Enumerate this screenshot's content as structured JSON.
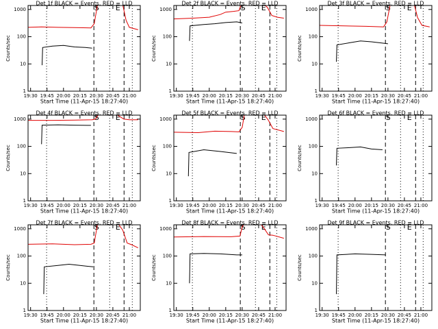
{
  "chart_data": [
    {
      "type": "line",
      "title": "Det 1f BLACK = Events, RED = LLD",
      "xlabel": "Start Time (11-Apr-15 18:27:40)",
      "ylabel": "Counts/sec",
      "yscale": "log",
      "ylim": [
        1,
        1400
      ],
      "yticks": [
        1,
        10,
        100,
        1000
      ],
      "xlim": [
        1167.7,
        1270
      ],
      "xticks": [
        {
          "value": 1170,
          "label": "19:30"
        },
        {
          "value": 1185,
          "label": "19:45"
        },
        {
          "value": 1200,
          "label": "20:00"
        },
        {
          "value": 1215,
          "label": "20:15"
        },
        {
          "value": 1230,
          "label": "20:30"
        },
        {
          "value": 1245,
          "label": "20:45"
        },
        {
          "value": 1260,
          "label": "21:00"
        }
      ],
      "annotations": [
        {
          "x": 1184.6,
          "style": "dotted"
        },
        {
          "x": 1227.7,
          "style": "dashed",
          "label": "S"
        },
        {
          "x": 1242.1,
          "style": "dotted"
        },
        {
          "x": 1255.2,
          "style": "dashed",
          "label": "E"
        },
        {
          "x": 1262.7,
          "style": "dotted"
        }
      ],
      "series": [
        {
          "color": "#e00000",
          "x": [
            1167.7,
            1180,
            1195,
            1210,
            1225,
            1228,
            1231,
            1254,
            1257,
            1260,
            1268
          ],
          "values": [
            220,
            230,
            220,
            215,
            210,
            300,
            1500,
            1500,
            400,
            220,
            180
          ]
        },
        {
          "color": "#000000",
          "x": [
            1180.5,
            1181,
            1190,
            1200,
            1210,
            1220,
            1226
          ],
          "values": [
            9,
            40,
            45,
            48,
            42,
            40,
            38
          ]
        }
      ]
    },
    {
      "type": "line",
      "title": "Det 2f BLACK = Events, RED = LLD",
      "xlabel": "Start Time (11-Apr-15 18:27:40)",
      "ylabel": "Counts/sec",
      "yscale": "log",
      "ylim": [
        1,
        1400
      ],
      "yticks": [
        1,
        10,
        100,
        1000
      ],
      "xlim": [
        1167.7,
        1270
      ],
      "xticks": [
        {
          "value": 1170,
          "label": "19:30"
        },
        {
          "value": 1185,
          "label": "19:45"
        },
        {
          "value": 1200,
          "label": "20:00"
        },
        {
          "value": 1215,
          "label": "20:15"
        },
        {
          "value": 1230,
          "label": "20:30"
        },
        {
          "value": 1245,
          "label": "20:45"
        },
        {
          "value": 1260,
          "label": "21:00"
        }
      ],
      "annotations": [
        {
          "x": 1184.6,
          "style": "dotted"
        },
        {
          "x": 1228.3,
          "style": "dashed",
          "label": "S"
        },
        {
          "x": 1242.1,
          "style": "dotted"
        },
        {
          "x": 1255.2,
          "style": "dashed",
          "label": "E"
        },
        {
          "x": 1261.5,
          "style": "dotted"
        }
      ],
      "series": [
        {
          "color": "#e00000",
          "x": [
            1167.7,
            1185,
            1200,
            1210,
            1215,
            1222,
            1227,
            1229,
            1232,
            1250,
            1253,
            1257,
            1262,
            1268
          ],
          "values": [
            450,
            480,
            520,
            650,
            800,
            850,
            900,
            1500,
            1500,
            1500,
            1200,
            600,
            520,
            480
          ]
        },
        {
          "color": "#000000",
          "x": [
            1182,
            1182.5,
            1195,
            1205,
            1215,
            1225,
            1230
          ],
          "values": [
            70,
            250,
            280,
            300,
            330,
            350,
            320
          ]
        }
      ]
    },
    {
      "type": "line",
      "title": "Det 3f BLACK = Events, RED = LLD",
      "xlabel": "Start Time (11-Apr-15 18:27:40)",
      "ylabel": "Counts/sec",
      "yscale": "log",
      "ylim": [
        1,
        1400
      ],
      "yticks": [
        1,
        10,
        100,
        1000
      ],
      "xlim": [
        1167.7,
        1270
      ],
      "xticks": [
        {
          "value": 1170,
          "label": "19:30"
        },
        {
          "value": 1185,
          "label": "19:45"
        },
        {
          "value": 1200,
          "label": "20:00"
        },
        {
          "value": 1215,
          "label": "20:15"
        },
        {
          "value": 1230,
          "label": "20:30"
        },
        {
          "value": 1245,
          "label": "20:45"
        },
        {
          "value": 1260,
          "label": "21:00"
        }
      ],
      "annotations": [
        {
          "x": 1184.6,
          "style": "dotted"
        },
        {
          "x": 1227.7,
          "style": "dashed",
          "label": "S"
        },
        {
          "x": 1241.5,
          "style": "dotted"
        },
        {
          "x": 1255.2,
          "style": "dashed",
          "label": "E"
        },
        {
          "x": 1262.1,
          "style": "dotted"
        }
      ],
      "series": [
        {
          "color": "#e00000",
          "x": [
            1167.7,
            1190,
            1210,
            1226,
            1229,
            1232,
            1254,
            1257,
            1261,
            1268
          ],
          "values": [
            260,
            250,
            240,
            230,
            350,
            1500,
            1500,
            500,
            260,
            230
          ]
        },
        {
          "color": "#000000",
          "x": [
            1183,
            1183.5,
            1195,
            1205,
            1215,
            1225,
            1230
          ],
          "values": [
            12,
            50,
            60,
            70,
            65,
            58,
            55
          ]
        }
      ]
    },
    {
      "type": "line",
      "title": "Det 4f BLACK = Events, RED = LLD",
      "xlabel": "Start Time (11-Apr-15 18:27:40)",
      "ylabel": "Counts/sec",
      "yscale": "log",
      "ylim": [
        1,
        1400
      ],
      "yticks": [
        1,
        10,
        100,
        1000
      ],
      "xlim": [
        1167.7,
        1270
      ],
      "xticks": [
        {
          "value": 1170,
          "label": "19:30"
        },
        {
          "value": 1185,
          "label": "19:45"
        },
        {
          "value": 1200,
          "label": "20:00"
        },
        {
          "value": 1215,
          "label": "20:15"
        },
        {
          "value": 1230,
          "label": "20:30"
        },
        {
          "value": 1245,
          "label": "20:45"
        },
        {
          "value": 1260,
          "label": "21:00"
        }
      ],
      "annotations": [
        {
          "x": 1184.6,
          "style": "dotted"
        },
        {
          "x": 1227.7,
          "style": "dashed",
          "label": "S"
        },
        {
          "x": 1242.1,
          "style": "dotted"
        },
        {
          "x": 1255.2,
          "style": "dashed",
          "label": "E"
        },
        {
          "x": 1262.7,
          "style": "dotted"
        }
      ],
      "series": [
        {
          "color": "#e00000",
          "x": [
            1167.7,
            1190,
            1210,
            1226,
            1229,
            1232,
            1248,
            1252,
            1255,
            1260,
            1268
          ],
          "values": [
            900,
            900,
            920,
            950,
            1000,
            1500,
            1500,
            1200,
            1000,
            950,
            950
          ]
        },
        {
          "color": "#000000",
          "x": [
            1180,
            1180.5,
            1195,
            1210,
            1225
          ],
          "values": [
            120,
            600,
            620,
            600,
            590
          ]
        }
      ]
    },
    {
      "type": "line",
      "title": "Det 5f BLACK = Events, RED = LLD",
      "xlabel": "Start Time (11-Apr-15 18:27:40)",
      "ylabel": "Counts/sec",
      "yscale": "log",
      "ylim": [
        1,
        1400
      ],
      "yticks": [
        1,
        10,
        100,
        1000
      ],
      "xlim": [
        1167.7,
        1270
      ],
      "xticks": [
        {
          "value": 1170,
          "label": "19:30"
        },
        {
          "value": 1185,
          "label": "19:45"
        },
        {
          "value": 1200,
          "label": "20:00"
        },
        {
          "value": 1215,
          "label": "20:15"
        },
        {
          "value": 1230,
          "label": "20:30"
        },
        {
          "value": 1245,
          "label": "20:45"
        },
        {
          "value": 1260,
          "label": "21:00"
        }
      ],
      "annotations": [
        {
          "x": 1184.6,
          "style": "dotted"
        },
        {
          "x": 1228.3,
          "style": "dashed",
          "label": "S"
        },
        {
          "x": 1242.1,
          "style": "dotted"
        },
        {
          "x": 1255.2,
          "style": "dashed",
          "label": "E"
        },
        {
          "x": 1261.5,
          "style": "dotted"
        }
      ],
      "series": [
        {
          "color": "#e00000",
          "x": [
            1167.7,
            1190,
            1205,
            1220,
            1227,
            1230,
            1232,
            1250,
            1254,
            1258,
            1268
          ],
          "values": [
            330,
            320,
            360,
            350,
            340,
            500,
            1500,
            1500,
            900,
            450,
            350
          ]
        },
        {
          "color": "#000000",
          "x": [
            1181,
            1181.5,
            1195,
            1210,
            1225
          ],
          "values": [
            8,
            60,
            75,
            65,
            55
          ]
        }
      ]
    },
    {
      "type": "line",
      "title": "Det 6f BLACK = Events, RED = LLD",
      "xlabel": "Start Time (11-Apr-15 18:27:40)",
      "ylabel": "Counts/sec",
      "yscale": "log",
      "ylim": [
        1,
        1400
      ],
      "yticks": [
        1,
        10,
        100,
        1000
      ],
      "xlim": [
        1167.7,
        1270
      ],
      "xticks": [
        {
          "value": 1170,
          "label": "19:30"
        },
        {
          "value": 1185,
          "label": "19:45"
        },
        {
          "value": 1200,
          "label": "20:00"
        },
        {
          "value": 1215,
          "label": "20:15"
        },
        {
          "value": 1230,
          "label": "20:30"
        },
        {
          "value": 1245,
          "label": "20:45"
        },
        {
          "value": 1260,
          "label": "21:00"
        }
      ],
      "annotations": [
        {
          "x": 1184.6,
          "style": "dotted"
        },
        {
          "x": 1227.7,
          "style": "dashed",
          "label": "S"
        },
        {
          "x": 1241.5,
          "style": "dotted"
        },
        {
          "x": 1255.2,
          "style": "dashed",
          "label": "E"
        },
        {
          "x": 1262.1,
          "style": "dotted"
        }
      ],
      "series": [
        {
          "color": "#000000",
          "x": [
            1183,
            1183.5,
            1195,
            1205,
            1215,
            1225
          ],
          "values": [
            20,
            85,
            90,
            95,
            80,
            75
          ]
        }
      ]
    },
    {
      "type": "line",
      "title": "Det 7f BLACK = Events, RED = LLD",
      "xlabel": "Start Time (11-Apr-15 18:27:40)",
      "ylabel": "Counts/sec",
      "yscale": "log",
      "ylim": [
        1,
        1400
      ],
      "yticks": [
        1,
        10,
        100,
        1000
      ],
      "xlim": [
        1167.7,
        1270
      ],
      "xticks": [
        {
          "value": 1170,
          "label": "19:30"
        },
        {
          "value": 1185,
          "label": "19:45"
        },
        {
          "value": 1200,
          "label": "20:00"
        },
        {
          "value": 1215,
          "label": "20:15"
        },
        {
          "value": 1230,
          "label": "20:30"
        },
        {
          "value": 1245,
          "label": "20:45"
        },
        {
          "value": 1260,
          "label": "21:00"
        }
      ],
      "annotations": [
        {
          "x": 1184.6,
          "style": "dotted"
        },
        {
          "x": 1227.7,
          "style": "dashed",
          "label": "S"
        },
        {
          "x": 1242.1,
          "style": "dotted"
        },
        {
          "x": 1255.2,
          "style": "dashed",
          "label": "E"
        },
        {
          "x": 1262.7,
          "style": "dotted"
        }
      ],
      "series": [
        {
          "color": "#e00000",
          "x": [
            1167.7,
            1190,
            1210,
            1225,
            1228,
            1231,
            1250,
            1254,
            1258,
            1262,
            1268
          ],
          "values": [
            270,
            280,
            260,
            270,
            300,
            1500,
            1500,
            900,
            300,
            260,
            200
          ]
        },
        {
          "color": "#000000",
          "x": [
            1182,
            1182.5,
            1195,
            1205,
            1215,
            1227
          ],
          "values": [
            4,
            40,
            45,
            50,
            45,
            40
          ]
        }
      ]
    },
    {
      "type": "line",
      "title": "Det 8f BLACK = Events, RED = LLD",
      "xlabel": "Start Time (11-Apr-15 18:27:40)",
      "ylabel": "Counts/sec",
      "yscale": "log",
      "ylim": [
        1,
        1400
      ],
      "yticks": [
        1,
        10,
        100,
        1000
      ],
      "xlim": [
        1167.7,
        1270
      ],
      "xticks": [
        {
          "value": 1170,
          "label": "19:30"
        },
        {
          "value": 1185,
          "label": "19:45"
        },
        {
          "value": 1200,
          "label": "20:00"
        },
        {
          "value": 1215,
          "label": "20:15"
        },
        {
          "value": 1230,
          "label": "20:30"
        },
        {
          "value": 1245,
          "label": "20:45"
        },
        {
          "value": 1260,
          "label": "21:00"
        }
      ],
      "annotations": [
        {
          "x": 1184.6,
          "style": "dotted"
        },
        {
          "x": 1228.3,
          "style": "dashed",
          "label": "S"
        },
        {
          "x": 1242.1,
          "style": "dotted"
        },
        {
          "x": 1255.2,
          "style": "dashed",
          "label": "E"
        },
        {
          "x": 1261.5,
          "style": "dotted"
        }
      ],
      "series": [
        {
          "color": "#e00000",
          "x": [
            1167.7,
            1195,
            1220,
            1228,
            1230,
            1232,
            1247,
            1251,
            1254,
            1258,
            1268
          ],
          "values": [
            500,
            520,
            510,
            540,
            1200,
            1500,
            1500,
            900,
            600,
            580,
            450
          ]
        },
        {
          "color": "#000000",
          "x": [
            1182,
            1182.5,
            1195,
            1210,
            1225,
            1230
          ],
          "values": [
            10,
            120,
            125,
            120,
            110,
            110
          ]
        }
      ]
    },
    {
      "type": "line",
      "title": "Det 9f BLACK = Events, RED = LLD",
      "xlabel": "Start Time (11-Apr-15 18:27:40)",
      "ylabel": "Counts/sec",
      "yscale": "log",
      "ylim": [
        1,
        1400
      ],
      "yticks": [
        1,
        10,
        100,
        1000
      ],
      "xlim": [
        1167.7,
        1270
      ],
      "xticks": [
        {
          "value": 1170,
          "label": "19:30"
        },
        {
          "value": 1185,
          "label": "19:45"
        },
        {
          "value": 1200,
          "label": "20:00"
        },
        {
          "value": 1215,
          "label": "20:15"
        },
        {
          "value": 1230,
          "label": "20:30"
        },
        {
          "value": 1245,
          "label": "20:45"
        },
        {
          "value": 1260,
          "label": "21:00"
        }
      ],
      "annotations": [
        {
          "x": 1184.6,
          "style": "dotted"
        },
        {
          "x": 1227.7,
          "style": "dashed",
          "label": "S"
        },
        {
          "x": 1241.5,
          "style": "dotted"
        },
        {
          "x": 1255.2,
          "style": "dashed",
          "label": "E"
        },
        {
          "x": 1262.1,
          "style": "dotted"
        }
      ],
      "series": [
        {
          "color": "#000000",
          "x": [
            1183,
            1183.5,
            1200,
            1215,
            1228
          ],
          "values": [
            4,
            110,
            120,
            115,
            110
          ]
        }
      ]
    }
  ]
}
